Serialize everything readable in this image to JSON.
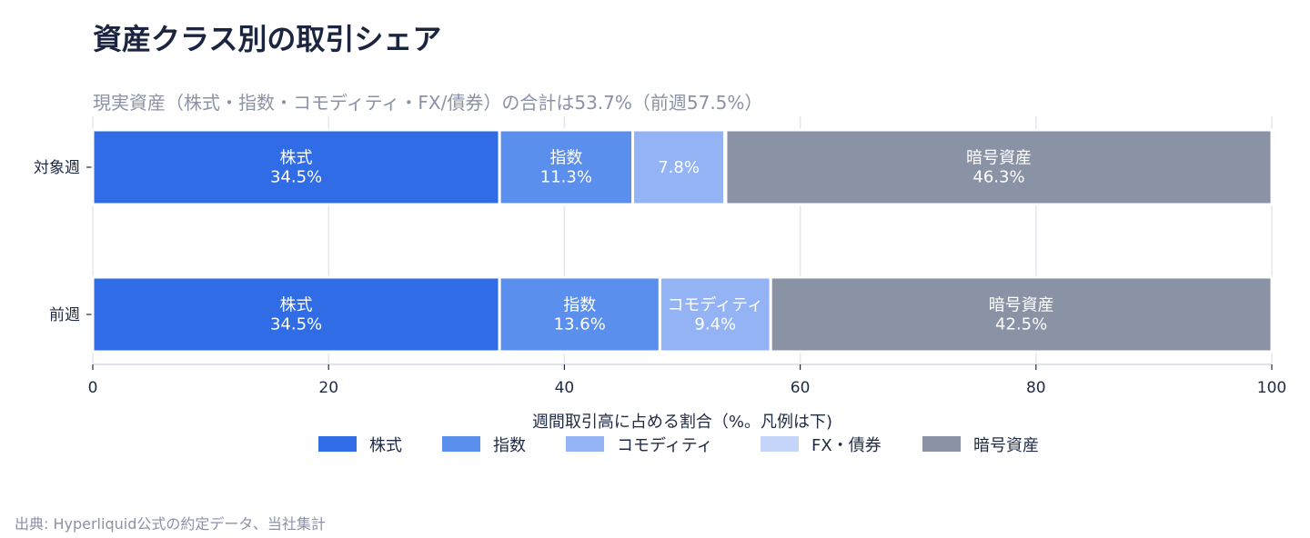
{
  "chart_data": {
    "type": "bar",
    "orientation": "horizontal",
    "stacked": true,
    "title": "資産クラス別の取引シェア",
    "subtitle": "現実資産（株式・指数・コモディティ・FX/債券）の合計は53.7%（前週57.5%）",
    "xlabel": "週間取引高に占める割合（%。凡例は下)",
    "ylabel": "",
    "xlim": [
      0,
      100
    ],
    "xticks": [
      "0",
      "20",
      "40",
      "60",
      "80",
      "100"
    ],
    "grid": true,
    "legend_position": "bottom",
    "categories": [
      "対象週",
      "前週"
    ],
    "series": [
      {
        "name": "株式",
        "color": "#2f6ce5",
        "values": [
          34.5,
          34.5
        ],
        "labels": [
          "株式\n34.5%",
          "株式\n34.5%"
        ]
      },
      {
        "name": "指数",
        "color": "#5b8fee",
        "values": [
          11.3,
          13.6
        ],
        "labels": [
          "指数\n11.3%",
          "指数\n13.6%"
        ]
      },
      {
        "name": "コモディティ",
        "color": "#93b3f5",
        "values": [
          7.8,
          9.4
        ],
        "labels": [
          "7.8%",
          "コモディティ\n9.4%"
        ]
      },
      {
        "name": "FX・債券",
        "color": "#c5d5fa",
        "values": [
          0.1,
          0.0
        ],
        "labels": [
          "",
          ""
        ]
      },
      {
        "name": "暗号資産",
        "color": "#8a92a5",
        "values": [
          46.3,
          42.5
        ],
        "labels": [
          "暗号資産\n46.3%",
          "暗号資産\n42.5%"
        ]
      }
    ]
  },
  "source": "出典: Hyperliquid公式の約定データ、当社集計"
}
